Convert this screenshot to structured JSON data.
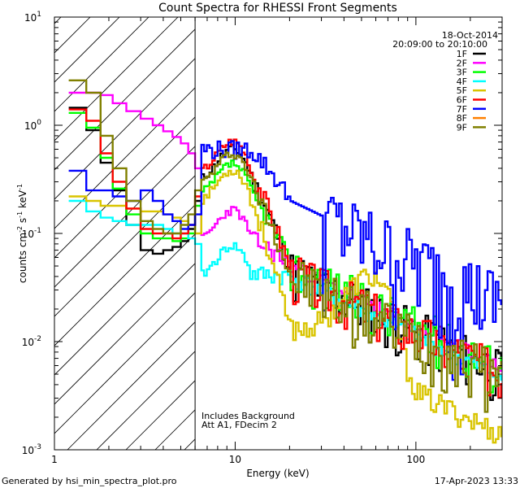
{
  "chart_data": {
    "type": "line",
    "title": "Count Spectra for RHESSI Front Segments",
    "xlabel": "Energy (keV)",
    "ylabel_parts": [
      "counts cm",
      "-2",
      " s",
      "-1",
      " keV",
      "-1"
    ],
    "xscale": "log",
    "yscale": "log",
    "xlim": [
      1,
      300
    ],
    "ylim": [
      0.001,
      10
    ],
    "x_major_ticks": [
      {
        "value": 1,
        "label": "1"
      },
      {
        "value": 10,
        "label": "10"
      },
      {
        "value": 100,
        "label": "100"
      }
    ],
    "y_major_ticks": [
      {
        "value": 0.001,
        "mant": "10",
        "exp": "-3"
      },
      {
        "value": 0.01,
        "mant": "10",
        "exp": "-2"
      },
      {
        "value": 0.1,
        "mant": "10",
        "exp": "-1"
      },
      {
        "value": 1,
        "mant": "10",
        "exp": "0"
      },
      {
        "value": 10,
        "mant": "10",
        "exp": "1"
      }
    ],
    "date": "18-Oct-2014",
    "time_range": "20:09:00 to 20:10:00",
    "annotation": [
      "Includes Background",
      "Att A1, FDecim 2"
    ],
    "hatched_below_keV": 6,
    "bin_edges_low": [
      1.2,
      1.5,
      1.8,
      2.1,
      2.5,
      3,
      3.5,
      4,
      4.5,
      5,
      5.5,
      6
    ],
    "series": [
      {
        "name": "1F",
        "color": "#000000",
        "low": [
          1.45,
          0.9,
          0.45,
          0.25,
          0.12,
          0.07,
          0.065,
          0.07,
          0.075,
          0.085,
          0.11,
          0.2
        ],
        "peak": 0.55,
        "tail": 0.045,
        "bump": 0,
        "noise": 0.55,
        "cutoff": 18,
        "seed": 11
      },
      {
        "name": "2F",
        "color": "#ff00ff",
        "low": [
          2.0,
          2.0,
          1.9,
          1.6,
          1.35,
          1.15,
          1.0,
          0.88,
          0.78,
          0.68,
          0.55,
          0.4
        ],
        "peak": 0.15,
        "tail": 0.05,
        "bump": 0,
        "noise": 0.15,
        "cutoff": 12,
        "seed": 23
      },
      {
        "name": "3F",
        "color": "#00ff00",
        "low": [
          1.3,
          0.95,
          0.5,
          0.26,
          0.15,
          0.1,
          0.09,
          0.09,
          0.085,
          0.09,
          0.1,
          0.18
        ],
        "peak": 0.4,
        "tail": 0.05,
        "bump": 0,
        "noise": 0.5,
        "cutoff": 18,
        "seed": 37
      },
      {
        "name": "4F",
        "color": "#00ffff",
        "low": [
          0.2,
          0.16,
          0.14,
          0.13,
          0.12,
          0.12,
          0.12,
          0.11,
          0.1,
          0.1,
          0.09,
          0.08
        ],
        "peak": 0.07,
        "tail": 0.04,
        "bump": 0,
        "noise": 0.2,
        "cutoff": 10,
        "seed": 41
      },
      {
        "name": "5F",
        "color": "#d9c400",
        "low": [
          0.22,
          0.2,
          0.18,
          0.18,
          0.17,
          0.16,
          0.16,
          0.15,
          0.14,
          0.13,
          0.12,
          0.1
        ],
        "peak": 0.35,
        "tail": 0.012,
        "bump": 0.035,
        "noise": 0.25,
        "cutoff": 16,
        "seed": 53
      },
      {
        "name": "6F",
        "color": "#ff0000",
        "low": [
          1.4,
          1.1,
          0.55,
          0.3,
          0.17,
          0.11,
          0.1,
          0.1,
          0.09,
          0.1,
          0.12,
          0.22
        ],
        "peak": 0.65,
        "tail": 0.045,
        "bump": 0,
        "noise": 0.5,
        "cutoff": 18,
        "seed": 67
      },
      {
        "name": "7F",
        "color": "#0000ff",
        "low": [
          0.38,
          0.25,
          0.25,
          0.22,
          0.2,
          0.25,
          0.2,
          0.15,
          0.13,
          0.11,
          0.12,
          0.15
        ],
        "peak": 0,
        "tail": 0.2,
        "bump": 0,
        "noise": 0.9,
        "cutoff": 30,
        "seed": 79
      },
      {
        "name": "8F",
        "color": "#ff8000",
        "low": [],
        "peak": 0,
        "tail": 0,
        "bump": 0,
        "noise": 0,
        "cutoff": 0,
        "seed": 83
      },
      {
        "name": "9F",
        "color": "#808000",
        "low": [
          2.6,
          2.0,
          0.8,
          0.4,
          0.2,
          0.13,
          0.11,
          0.1,
          0.1,
          0.12,
          0.15,
          0.25
        ],
        "peak": 0.5,
        "tail": 0.04,
        "bump": 0,
        "noise": 0.6,
        "cutoff": 18,
        "seed": 97
      }
    ]
  },
  "footer": {
    "left": "Generated by hsi_min_spectra_plot.pro",
    "right": "17-Apr-2023 13:33"
  }
}
